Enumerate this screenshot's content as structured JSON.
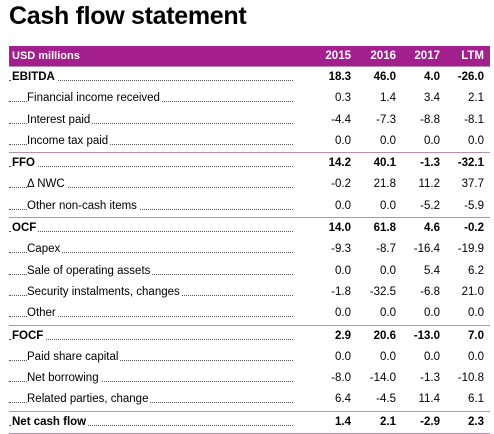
{
  "title": "Cash flow statement",
  "header": {
    "label": "USD millions",
    "columns": [
      "2015",
      "2016",
      "2017",
      "LTM"
    ]
  },
  "rows": [
    {
      "label": "EBITDA",
      "values": [
        "18.3",
        "46.0",
        "4.0",
        "-26.0"
      ],
      "bold": true
    },
    {
      "label": "Financial income received",
      "values": [
        "0.3",
        "1.4",
        "3.4",
        "2.1"
      ],
      "bold": false
    },
    {
      "label": "Interest paid",
      "values": [
        "-4.4",
        "-7.3",
        "-8.8",
        "-8.1"
      ],
      "bold": false
    },
    {
      "label": "Income tax paid",
      "values": [
        "0.0",
        "0.0",
        "0.0",
        "0.0"
      ],
      "bold": false
    },
    {
      "label": "FFO",
      "values": [
        "14.2",
        "40.1",
        "-1.3",
        "-32.1"
      ],
      "bold": true
    },
    {
      "label": "Δ NWC",
      "values": [
        "-0.2",
        "21.8",
        "11.2",
        "37.7"
      ],
      "bold": false
    },
    {
      "label": "Other non-cash items",
      "values": [
        "0.0",
        "0.0",
        "-5.2",
        "-5.9"
      ],
      "bold": false
    },
    {
      "label": "OCF",
      "values": [
        "14.0",
        "61.8",
        "4.6",
        "-0.2"
      ],
      "bold": true
    },
    {
      "label": "Capex",
      "values": [
        "-9.3",
        "-8.7",
        "-16.4",
        "-19.9"
      ],
      "bold": false
    },
    {
      "label": "Sale of operating assets",
      "values": [
        "0.0",
        "0.0",
        "5.4",
        "6.2"
      ],
      "bold": false
    },
    {
      "label": "Security instalments, changes",
      "values": [
        "-1.8",
        "-32.5",
        "-6.8",
        "21.0"
      ],
      "bold": false
    },
    {
      "label": "Other",
      "values": [
        "0.0",
        "0.0",
        "0.0",
        "0.0"
      ],
      "bold": false
    },
    {
      "label": "FOCF",
      "values": [
        "2.9",
        "20.6",
        "-13.0",
        "7.0"
      ],
      "bold": true
    },
    {
      "label": "Paid share capital",
      "values": [
        "0.0",
        "0.0",
        "0.0",
        "0.0"
      ],
      "bold": false
    },
    {
      "label": "Net borrowing",
      "values": [
        "-8.0",
        "-14.0",
        "-1.3",
        "-10.8"
      ],
      "bold": false
    },
    {
      "label": "Related parties, change",
      "values": [
        "6.4",
        "-4.5",
        "11.4",
        "6.1"
      ],
      "bold": false
    },
    {
      "label": "Net cash flow",
      "values": [
        "1.4",
        "2.1",
        "-2.9",
        "2.3"
      ],
      "bold": true
    }
  ],
  "colors": {
    "header_bg": "#a21f8d",
    "rule": "#b98fb1"
  }
}
